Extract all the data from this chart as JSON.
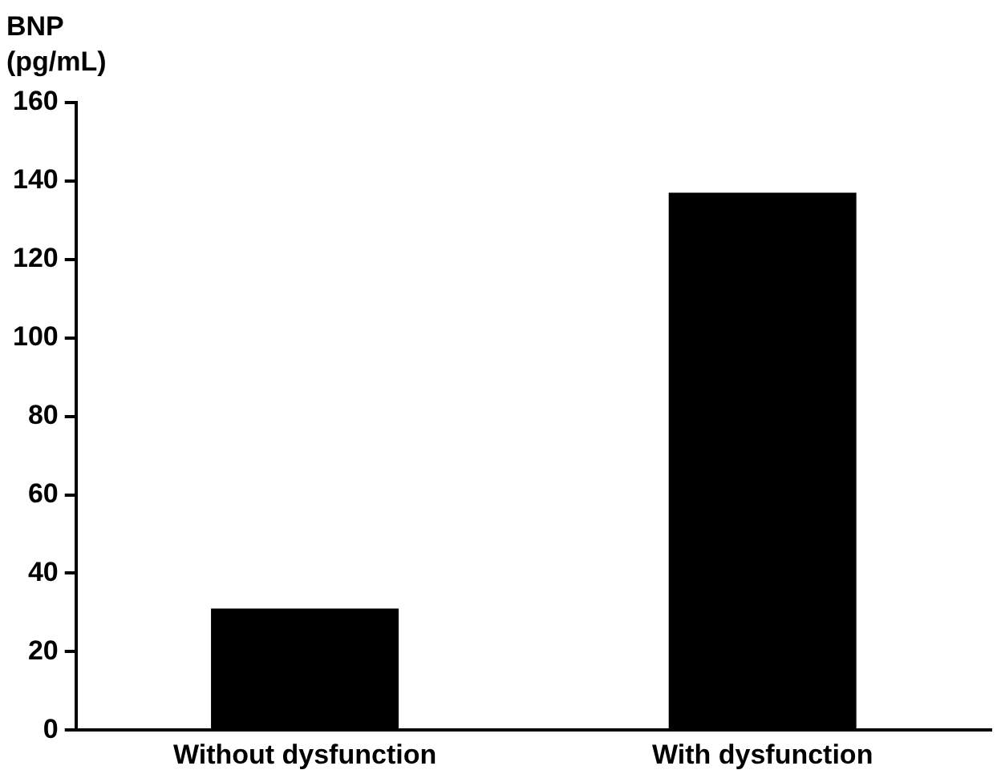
{
  "chart_data": {
    "type": "bar",
    "ylabel": "BNP (pg/mL)",
    "categories": [
      "Without dysfunction",
      "With dysfunction"
    ],
    "values": [
      31,
      137
    ],
    "color": "#000000",
    "ylim": [
      0,
      160
    ],
    "yticks": [
      0,
      20,
      40,
      60,
      80,
      100,
      120,
      140,
      160
    ],
    "grid": false,
    "legend": false
  }
}
